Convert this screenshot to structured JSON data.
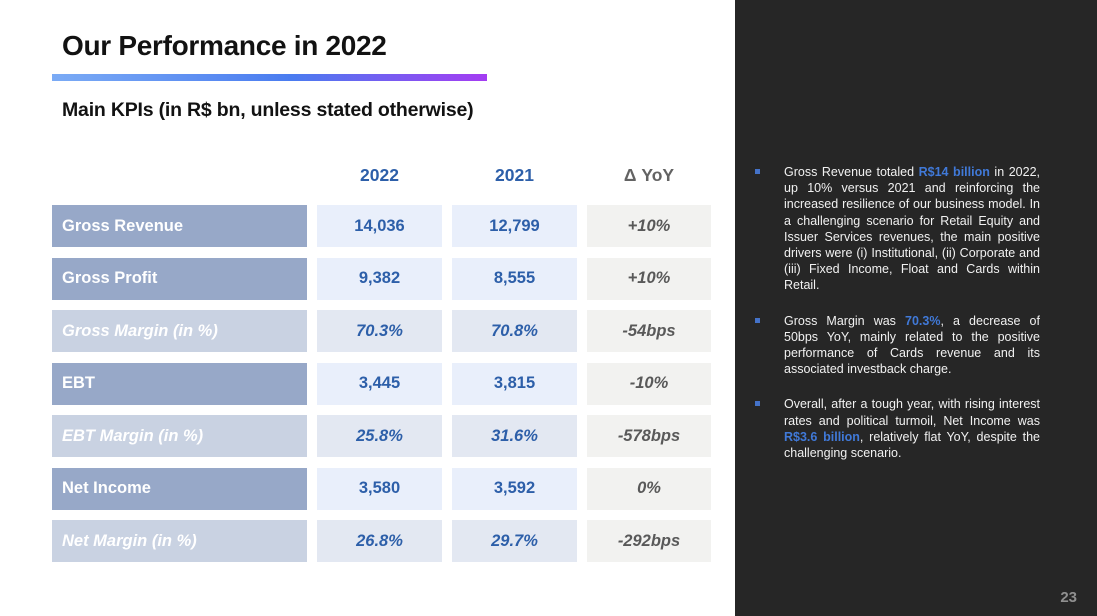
{
  "slide": {
    "title": "Our Performance in 2022",
    "subtitle": "Main KPIs (in R$ bn, unless stated otherwise)",
    "page_number": "23"
  },
  "colors": {
    "accent_gradient_start": "#7babf5",
    "accent_gradient_end": "#a43cf2",
    "table_header_blue": "#2d5fa9",
    "row_label_bg": "#97a8c8",
    "margin_row_label_bg": "#c9d2e2",
    "value_cell_bg": "#e9effb",
    "margin_value_cell_bg": "#e3e8f2",
    "yoy_cell_bg": "#f2f2f0",
    "sidebar_bg": "#262626",
    "highlight_blue": "#4079d8",
    "bullet_blue": "#4472c8"
  },
  "table": {
    "columns": [
      "2022",
      "2021",
      "Δ YoY"
    ],
    "rows": [
      {
        "style": "main",
        "label": "Gross Revenue",
        "v2022": "14,036",
        "v2021": "12,799",
        "yoy": "+10%"
      },
      {
        "style": "main",
        "label": "Gross Profit",
        "v2022": "9,382",
        "v2021": "8,555",
        "yoy": "+10%"
      },
      {
        "style": "margin",
        "label": "Gross Margin (in %)",
        "v2022": "70.3%",
        "v2021": "70.8%",
        "yoy": "-54bps"
      },
      {
        "style": "main",
        "label": "EBT",
        "v2022": "3,445",
        "v2021": "3,815",
        "yoy": "-10%"
      },
      {
        "style": "margin",
        "label": "EBT Margin (in %)",
        "v2022": "25.8%",
        "v2021": "31.6%",
        "yoy": "-578bps"
      },
      {
        "style": "main",
        "label": "Net Income",
        "v2022": "3,580",
        "v2021": "3,592",
        "yoy": "0%"
      },
      {
        "style": "margin",
        "label": "Net Margin (in %)",
        "v2022": "26.8%",
        "v2021": "29.7%",
        "yoy": "-292bps"
      }
    ]
  },
  "sidebar": {
    "bullets": [
      {
        "segments": [
          {
            "text": "Gross Revenue totaled ",
            "highlight": false
          },
          {
            "text": "R$14 billion",
            "highlight": true
          },
          {
            "text": " in 2022, up 10% versus 2021 and reinforcing the increased resilience of our business model. In a challenging scenario for Retail Equity and Issuer Services revenues, the main positive drivers were (i) Institutional, (ii) Corporate and (iii) Fixed Income, Float and Cards within Retail.",
            "highlight": false
          }
        ]
      },
      {
        "segments": [
          {
            "text": "Gross Margin was ",
            "highlight": false
          },
          {
            "text": "70.3%",
            "highlight": true
          },
          {
            "text": ", a decrease of 50bps YoY, mainly related to the positive performance of Cards revenue and its associated investback charge.",
            "highlight": false
          }
        ]
      },
      {
        "segments": [
          {
            "text": "Overall, after a tough year, with rising interest rates and political turmoil, Net Income was ",
            "highlight": false
          },
          {
            "text": "R$3.6 billion",
            "highlight": true
          },
          {
            "text": ", relatively flat YoY, despite the challenging scenario.",
            "highlight": false
          }
        ]
      }
    ]
  }
}
